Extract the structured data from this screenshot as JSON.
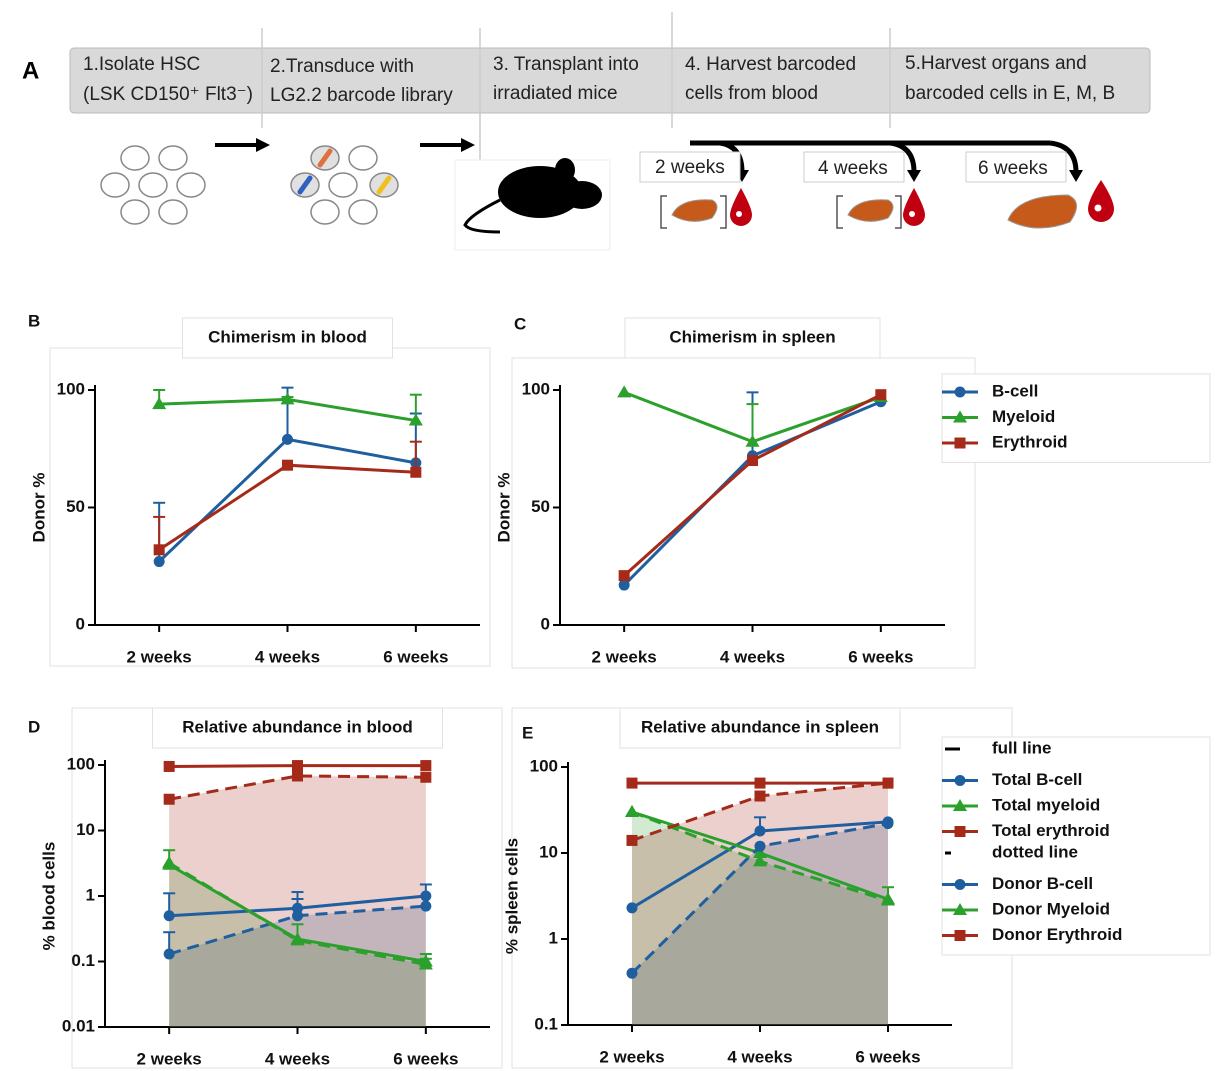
{
  "diagram": {
    "label": "A",
    "steps": [
      [
        "1.Isolate HSC",
        "(LSK CD150⁺ Flt3⁻)"
      ],
      [
        "2.Transduce with",
        "LG2.2 barcode library"
      ],
      [
        "3. Transplant into",
        "irradiated mice"
      ],
      [
        "4. Harvest barcoded",
        "cells from blood"
      ],
      [
        "5.Harvest organs and",
        "barcoded cells in E, M, B"
      ]
    ],
    "time_points": [
      "2 weeks",
      "4 weeks",
      "6 weeks"
    ]
  },
  "chart_data": [
    {
      "panel": "B",
      "type": "line",
      "title": "Chimerism in blood",
      "y_label": "Donor %",
      "categories": [
        "2 weeks",
        "4 weeks",
        "6 weeks"
      ],
      "ylim": [
        0,
        100
      ],
      "yticks": [
        0,
        50,
        100
      ],
      "series": [
        {
          "color": "#1f5fa0",
          "marker": "circle",
          "line_style": "solid",
          "values": [
            27,
            79,
            69
          ],
          "errors": [
            25,
            22,
            21
          ]
        },
        {
          "color": "#2ca02c",
          "marker": "triangle",
          "line_style": "solid",
          "values": [
            94,
            96,
            87
          ],
          "errors": [
            6,
            1,
            11
          ]
        },
        {
          "color": "#a52a1a",
          "marker": "square",
          "line_style": "solid",
          "values": [
            32,
            68,
            65
          ],
          "errors": [
            14,
            0,
            13
          ]
        }
      ]
    },
    {
      "panel": "C",
      "type": "line",
      "title": "Chimerism in spleen",
      "y_label": "Donor %",
      "categories": [
        "2 weeks",
        "4 weeks",
        "6 weeks"
      ],
      "ylim": [
        0,
        100
      ],
      "yticks": [
        0,
        50,
        100
      ],
      "legend": "right",
      "series": [
        {
          "name": "B-cell",
          "color": "#1f5fa0",
          "marker": "circle",
          "line_style": "solid",
          "values": [
            17,
            72,
            95
          ],
          "errors": [
            0,
            27,
            0
          ]
        },
        {
          "name": "Myeloid",
          "color": "#2ca02c",
          "marker": "triangle",
          "line_style": "solid",
          "values": [
            99,
            78,
            97
          ],
          "errors": [
            0,
            16,
            0
          ]
        },
        {
          "name": "Erythroid",
          "color": "#a52a1a",
          "marker": "square",
          "line_style": "solid",
          "values": [
            21,
            70,
            98
          ],
          "errors": [
            0,
            0,
            0
          ]
        }
      ]
    },
    {
      "panel": "D",
      "type": "line",
      "title": "Relative abundance in blood",
      "y_label": "% blood cells",
      "categories": [
        "2 weeks",
        "4 weeks",
        "6 weeks"
      ],
      "log_scale": true,
      "fill_area": true,
      "ylim": [
        0.01,
        100
      ],
      "yticks": [
        0.01,
        0.1,
        1,
        10,
        100
      ],
      "series": [
        {
          "color": "#1f5fa0",
          "marker": "circle",
          "line_style": "solid",
          "values": [
            0.5,
            0.65,
            1.0
          ],
          "errors": [
            0.6,
            0.5,
            0.5
          ]
        },
        {
          "color": "#2ca02c",
          "marker": "triangle",
          "line_style": "solid",
          "values": [
            3,
            0.22,
            0.1
          ],
          "errors": [
            2,
            0.15,
            0.03
          ]
        },
        {
          "color": "#a52a1a",
          "marker": "square",
          "line_style": "solid",
          "values": [
            95,
            98,
            98
          ],
          "errors": [
            0,
            0,
            0
          ]
        },
        {
          "color": "#1f5fa0",
          "marker": "circle",
          "line_style": "dashed",
          "values": [
            0.13,
            0.5,
            0.7
          ],
          "errors": [
            0.15,
            0.4,
            0
          ]
        },
        {
          "color": "#2ca02c",
          "marker": "triangle",
          "line_style": "dashed",
          "values": [
            3.2,
            0.21,
            0.09
          ],
          "errors": [
            0,
            0,
            0.02
          ]
        },
        {
          "color": "#a52a1a",
          "marker": "square",
          "line_style": "dashed",
          "values": [
            30,
            68,
            65
          ],
          "errors": [
            0,
            0,
            0
          ]
        }
      ]
    },
    {
      "panel": "E",
      "type": "line",
      "title": "Relative abundance in spleen",
      "y_label": "% spleen cells",
      "categories": [
        "2 weeks",
        "4 weeks",
        "6 weeks"
      ],
      "log_scale": true,
      "fill_area": true,
      "ylim": [
        0.1,
        100
      ],
      "yticks": [
        0.1,
        1,
        10,
        100
      ],
      "legend": "right",
      "legend_headers": [
        "full line",
        "dotted line"
      ],
      "series": [
        {
          "name": "Total B-cell",
          "color": "#1f5fa0",
          "marker": "circle",
          "line_style": "solid",
          "values": [
            2.3,
            18,
            23
          ],
          "errors": [
            0,
            8,
            0
          ]
        },
        {
          "name": "Total myeloid",
          "color": "#2ca02c",
          "marker": "triangle",
          "line_style": "solid",
          "values": [
            30,
            10,
            2.9
          ],
          "errors": [
            0,
            0,
            1.1
          ]
        },
        {
          "name": "Total erythroid",
          "color": "#a52a1a",
          "marker": "square",
          "line_style": "solid",
          "values": [
            65,
            65,
            65
          ],
          "errors": [
            0,
            0,
            0
          ]
        },
        {
          "name": "Donor B-cell",
          "color": "#1f5fa0",
          "marker": "circle",
          "line_style": "dashed",
          "values": [
            0.4,
            12,
            22
          ],
          "errors": [
            0,
            0,
            0
          ]
        },
        {
          "name": "Donor Myeloid",
          "color": "#2ca02c",
          "marker": "triangle",
          "line_style": "dashed",
          "values": [
            30,
            8,
            2.8
          ],
          "errors": [
            0,
            0,
            0
          ]
        },
        {
          "name": "Donor Erythroid",
          "color": "#a52a1a",
          "marker": "square",
          "line_style": "dashed",
          "values": [
            14,
            46,
            65
          ],
          "errors": [
            0,
            0,
            0
          ]
        }
      ]
    }
  ]
}
